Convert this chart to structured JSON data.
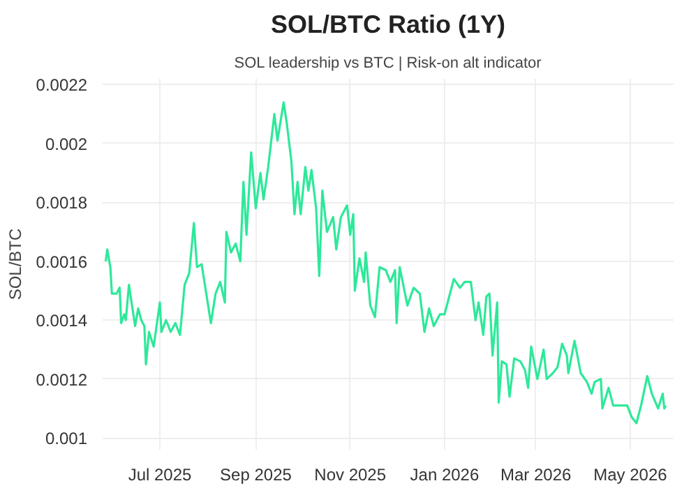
{
  "chart_data": {
    "type": "line",
    "title": "SOL/BTC Ratio (1Y)",
    "subtitle": "SOL leadership vs BTC | Risk-on alt indicator",
    "ylabel": "SOL/BTC",
    "xlim": [
      "2025-05-25",
      "2026-05-29"
    ],
    "ylim": [
      0.00096,
      0.00222
    ],
    "xticks": [
      {
        "value": "2025-07-01",
        "label": "Jul 2025"
      },
      {
        "value": "2025-09-01",
        "label": "Sep 2025"
      },
      {
        "value": "2025-11-01",
        "label": "Nov 2025"
      },
      {
        "value": "2026-01-01",
        "label": "Jan 2026"
      },
      {
        "value": "2026-03-01",
        "label": "Mar 2026"
      },
      {
        "value": "2026-05-01",
        "label": "May 2026"
      }
    ],
    "yticks": [
      0.001,
      0.0012,
      0.0014,
      0.0016,
      0.0018,
      0.002,
      0.0022
    ],
    "grid": true,
    "marker": "none",
    "line_style": "solid",
    "series": [
      {
        "color": "#2ee89a",
        "x": [
          "2025-05-27",
          "2025-05-28",
          "2025-05-30",
          "2025-05-31",
          "2025-06-03",
          "2025-06-05",
          "2025-06-06",
          "2025-06-08",
          "2025-06-09",
          "2025-06-11",
          "2025-06-15",
          "2025-06-17",
          "2025-06-19",
          "2025-06-21",
          "2025-06-22",
          "2025-06-24",
          "2025-06-27",
          "2025-07-01",
          "2025-07-02",
          "2025-07-05",
          "2025-07-08",
          "2025-07-11",
          "2025-07-14",
          "2025-07-17",
          "2025-07-20",
          "2025-07-23",
          "2025-07-25",
          "2025-07-28",
          "2025-08-03",
          "2025-08-06",
          "2025-08-09",
          "2025-08-12",
          "2025-08-13",
          "2025-08-16",
          "2025-08-19",
          "2025-08-22",
          "2025-08-24",
          "2025-08-26",
          "2025-08-29",
          "2025-09-01",
          "2025-09-04",
          "2025-09-06",
          "2025-09-09",
          "2025-09-13",
          "2025-09-15",
          "2025-09-19",
          "2025-09-21",
          "2025-09-24",
          "2025-09-26",
          "2025-09-28",
          "2025-09-30",
          "2025-10-03",
          "2025-10-05",
          "2025-10-07",
          "2025-10-10",
          "2025-10-12",
          "2025-10-14",
          "2025-10-17",
          "2025-10-21",
          "2025-10-23",
          "2025-10-26",
          "2025-10-30",
          "2025-11-01",
          "2025-11-03",
          "2025-11-04",
          "2025-11-07",
          "2025-11-10",
          "2025-11-11",
          "2025-11-14",
          "2025-11-17",
          "2025-11-20",
          "2025-11-24",
          "2025-11-27",
          "2025-11-30",
          "2025-12-01",
          "2025-12-03",
          "2025-12-08",
          "2025-12-12",
          "2025-12-16",
          "2025-12-19",
          "2025-12-22",
          "2025-12-25",
          "2025-12-29",
          "2026-01-01",
          "2026-01-07",
          "2026-01-11",
          "2026-01-14",
          "2026-01-18",
          "2026-01-21",
          "2026-01-23",
          "2026-01-26",
          "2026-01-28",
          "2026-01-30",
          "2026-02-01",
          "2026-02-04",
          "2026-02-05",
          "2026-02-07",
          "2026-02-10",
          "2026-02-12",
          "2026-02-15",
          "2026-02-19",
          "2026-02-22",
          "2026-02-24",
          "2026-02-26",
          "2026-03-02",
          "2026-03-06",
          "2026-03-08",
          "2026-03-12",
          "2026-03-15",
          "2026-03-18",
          "2026-03-21",
          "2026-03-22",
          "2026-03-26",
          "2026-03-30",
          "2026-04-03",
          "2026-04-06",
          "2026-04-08",
          "2026-04-12",
          "2026-04-13",
          "2026-04-17",
          "2026-04-20",
          "2026-04-25",
          "2026-04-29",
          "2026-05-02",
          "2026-05-05",
          "2026-05-08",
          "2026-05-12",
          "2026-05-15",
          "2026-05-19",
          "2026-05-22",
          "2026-05-23",
          "2026-05-24"
        ],
        "values": [
          0.0016,
          0.00164,
          0.00158,
          0.00149,
          0.00149,
          0.00151,
          0.00139,
          0.00142,
          0.0014,
          0.00152,
          0.00138,
          0.00144,
          0.0014,
          0.00138,
          0.00125,
          0.00136,
          0.00131,
          0.00146,
          0.00136,
          0.0014,
          0.00136,
          0.00139,
          0.00135,
          0.00152,
          0.00156,
          0.00173,
          0.00158,
          0.00159,
          0.00139,
          0.00149,
          0.00153,
          0.00146,
          0.0017,
          0.00163,
          0.00166,
          0.0016,
          0.00187,
          0.00169,
          0.00197,
          0.00178,
          0.0019,
          0.00181,
          0.00192,
          0.0021,
          0.00201,
          0.00214,
          0.00207,
          0.00194,
          0.00176,
          0.00187,
          0.00176,
          0.00192,
          0.00184,
          0.00191,
          0.00178,
          0.00155,
          0.00184,
          0.0017,
          0.00175,
          0.00164,
          0.00175,
          0.00179,
          0.00169,
          0.00176,
          0.0015,
          0.00161,
          0.00153,
          0.00163,
          0.00145,
          0.00141,
          0.00158,
          0.00157,
          0.00153,
          0.00157,
          0.00139,
          0.00158,
          0.00145,
          0.00151,
          0.00149,
          0.00136,
          0.00144,
          0.00138,
          0.00142,
          0.00142,
          0.00154,
          0.00151,
          0.00153,
          0.00153,
          0.0014,
          0.00146,
          0.00135,
          0.00148,
          0.00149,
          0.00128,
          0.00146,
          0.00112,
          0.00126,
          0.00125,
          0.00114,
          0.00127,
          0.00126,
          0.00123,
          0.00117,
          0.00131,
          0.0012,
          0.0013,
          0.0012,
          0.00122,
          0.00124,
          0.00132,
          0.00128,
          0.00122,
          0.00133,
          0.00122,
          0.00119,
          0.00115,
          0.00119,
          0.0012,
          0.0011,
          0.00117,
          0.00111,
          0.00111,
          0.00111,
          0.00107,
          0.00105,
          0.00111,
          0.00121,
          0.00115,
          0.0011,
          0.00115,
          0.0011,
          0.00111
        ]
      }
    ]
  }
}
